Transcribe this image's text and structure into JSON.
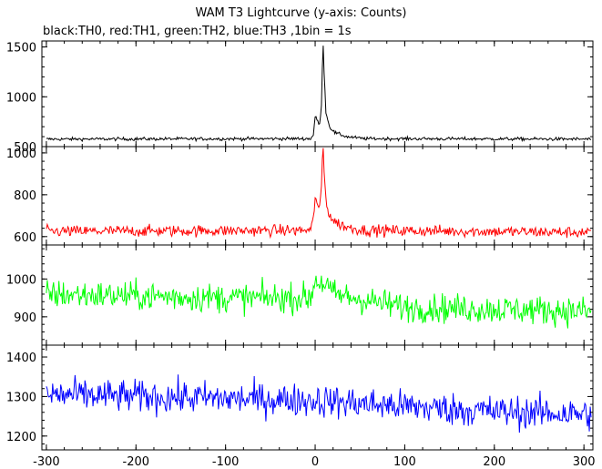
{
  "chart_data": {
    "type": "line",
    "title": "WAM T3 Lightcurve (y-axis: Counts)",
    "subtitle": "black:TH0, red:TH1, green:TH2, blue:TH3 ,1bin = 1s",
    "xlim": [
      -305,
      310
    ],
    "xticks": [
      -300,
      -200,
      -100,
      0,
      100,
      200,
      300
    ],
    "grid": false,
    "panels": [
      {
        "name": "TH0",
        "color": "#000000",
        "ylim": [
          500,
          1560
        ],
        "yticks": [
          500,
          1000,
          1500
        ],
        "baseline": 575,
        "noise": 15,
        "burst": [
          [
            -300,
            575
          ],
          [
            -5,
            580
          ],
          [
            -2,
            620
          ],
          [
            0,
            800
          ],
          [
            2,
            770
          ],
          [
            5,
            720
          ],
          [
            7,
            900
          ],
          [
            8,
            1300
          ],
          [
            9,
            1520
          ],
          [
            10,
            1250
          ],
          [
            12,
            850
          ],
          [
            16,
            700
          ],
          [
            22,
            640
          ],
          [
            35,
            600
          ],
          [
            55,
            580
          ],
          [
            310,
            575
          ]
        ]
      },
      {
        "name": "TH1",
        "color": "#ff0000",
        "ylim": [
          560,
          1030
        ],
        "yticks": [
          600,
          800,
          1000
        ],
        "baseline": 625,
        "noise": 25,
        "burst": [
          [
            -300,
            625
          ],
          [
            -5,
            630
          ],
          [
            -2,
            680
          ],
          [
            0,
            800
          ],
          [
            2,
            760
          ],
          [
            5,
            720
          ],
          [
            7,
            850
          ],
          [
            8,
            960
          ],
          [
            9,
            1010
          ],
          [
            10,
            920
          ],
          [
            12,
            780
          ],
          [
            16,
            700
          ],
          [
            22,
            670
          ],
          [
            35,
            645
          ],
          [
            55,
            630
          ],
          [
            310,
            620
          ]
        ]
      },
      {
        "name": "TH2",
        "color": "#00ff00",
        "ylim": [
          825,
          1090
        ],
        "yticks": [
          900,
          1000
        ],
        "baseline": 945,
        "noise": 35,
        "burst": [
          [
            -300,
            960
          ],
          [
            -100,
            950
          ],
          [
            -5,
            950
          ],
          [
            0,
            1000
          ],
          [
            5,
            990
          ],
          [
            10,
            990
          ],
          [
            20,
            960
          ],
          [
            100,
            925
          ],
          [
            200,
            920
          ],
          [
            310,
            915
          ]
        ]
      },
      {
        "name": "TH3",
        "color": "#0000ff",
        "ylim": [
          1165,
          1430
        ],
        "yticks": [
          1200,
          1300,
          1400
        ],
        "baseline": 1290,
        "noise": 38,
        "burst": [
          [
            -300,
            1305
          ],
          [
            -200,
            1300
          ],
          [
            0,
            1290
          ],
          [
            100,
            1275
          ],
          [
            200,
            1262
          ],
          [
            310,
            1255
          ]
        ]
      }
    ]
  }
}
